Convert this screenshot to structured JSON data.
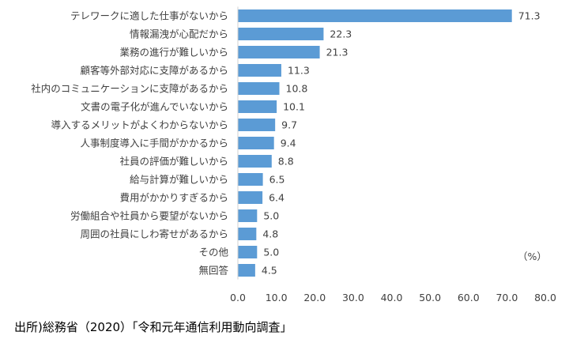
{
  "chart_data": {
    "type": "bar",
    "orientation": "horizontal",
    "categories": [
      "テレワークに適した仕事がないから",
      "情報漏洩が心配だから",
      "業務の進行が難しいから",
      "顧客等外部対応に支障があるから",
      "社内のコミュニケーションに支障があるから",
      "文書の電子化が進んでいないから",
      "導入するメリットがよくわからないから",
      "人事制度導入に手間がかかるから",
      "社員の評価が難しいから",
      "給与計算が難しいから",
      "費用がかかりすぎるから",
      "労働組合や社員から要望がないから",
      "周囲の社員にしわ寄せがあるから",
      "その他",
      "無回答"
    ],
    "values": [
      71.3,
      22.3,
      21.3,
      11.3,
      10.8,
      10.1,
      9.7,
      9.4,
      8.8,
      6.5,
      6.4,
      5.0,
      4.8,
      5.0,
      4.5
    ],
    "value_labels": [
      "71.3",
      "22.3",
      "21.3",
      "11.3",
      "10.8",
      "10.1",
      "9.7",
      "9.4",
      "8.8",
      "6.5",
      "6.4",
      "5.0",
      "4.8",
      "5.0",
      "4.5"
    ],
    "xlim": [
      0,
      80
    ],
    "xticks": [
      "0.0",
      "10.0",
      "20.0",
      "30.0",
      "40.0",
      "50.0",
      "60.0",
      "70.0",
      "80.0"
    ],
    "unit_label": "（%）",
    "bar_color": "#5B9BD5",
    "grid": false
  },
  "source": "出所)総務省（2020）「令和元年通信利用動向調査」"
}
